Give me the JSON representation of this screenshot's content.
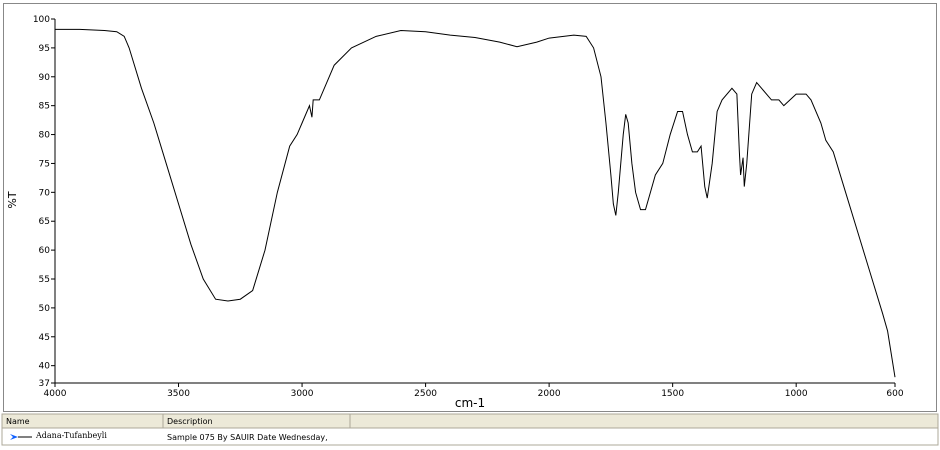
{
  "chart_data": {
    "type": "line",
    "x_label": "cm-1",
    "y_label": "%T",
    "xlim": [
      4000,
      600
    ],
    "xticks": [
      4000,
      3500,
      3000,
      2500,
      2000,
      1500,
      1000,
      600
    ],
    "ylim": [
      37,
      100
    ],
    "yticks": [
      37,
      40,
      45,
      50,
      55,
      60,
      65,
      70,
      75,
      80,
      85,
      90,
      95,
      100
    ],
    "x": [
      4000,
      3900,
      3800,
      3750,
      3720,
      3700,
      3650,
      3600,
      3550,
      3500,
      3450,
      3400,
      3350,
      3300,
      3250,
      3200,
      3150,
      3100,
      3050,
      3020,
      3000,
      2970,
      2960,
      2955,
      2930,
      2900,
      2870,
      2800,
      2700,
      2600,
      2500,
      2400,
      2300,
      2200,
      2130,
      2050,
      2000,
      1900,
      1850,
      1820,
      1790,
      1770,
      1750,
      1740,
      1730,
      1720,
      1700,
      1690,
      1680,
      1665,
      1650,
      1630,
      1610,
      1590,
      1570,
      1540,
      1510,
      1480,
      1460,
      1440,
      1420,
      1400,
      1385,
      1370,
      1360,
      1340,
      1320,
      1300,
      1260,
      1240,
      1230,
      1225,
      1215,
      1210,
      1200,
      1180,
      1160,
      1140,
      1100,
      1070,
      1050,
      1000,
      960,
      940,
      900,
      880,
      850,
      800,
      750,
      700,
      650,
      630,
      600
    ],
    "series": [
      {
        "name": "Adana-Tufanbeyli",
        "color": "#000000",
        "values": [
          98.2,
          98.2,
          98.0,
          97.8,
          97.0,
          95,
          88,
          82,
          75,
          68,
          61,
          55,
          51.5,
          51.2,
          51.5,
          53,
          60,
          70,
          78,
          80,
          82,
          85,
          83,
          86,
          86,
          89,
          92,
          95,
          97,
          98,
          97.8,
          97.2,
          96.8,
          96,
          95.2,
          96,
          96.7,
          97.2,
          97,
          95,
          90,
          82,
          73,
          68,
          66,
          70,
          80,
          83.5,
          82,
          75,
          70,
          67,
          67,
          70,
          73,
          75,
          80,
          84,
          84,
          80,
          77,
          77,
          78,
          71,
          69,
          75,
          84,
          86,
          88,
          87,
          77,
          73,
          76,
          71,
          75,
          87,
          89,
          88,
          86,
          86,
          85,
          87,
          87,
          86,
          82,
          79,
          77,
          70,
          63,
          56,
          49,
          46,
          38
        ]
      }
    ]
  },
  "panel": {
    "headers": [
      "Name",
      "Description"
    ],
    "description": "Sample 075 By SAUIR Date Wednesday,"
  }
}
